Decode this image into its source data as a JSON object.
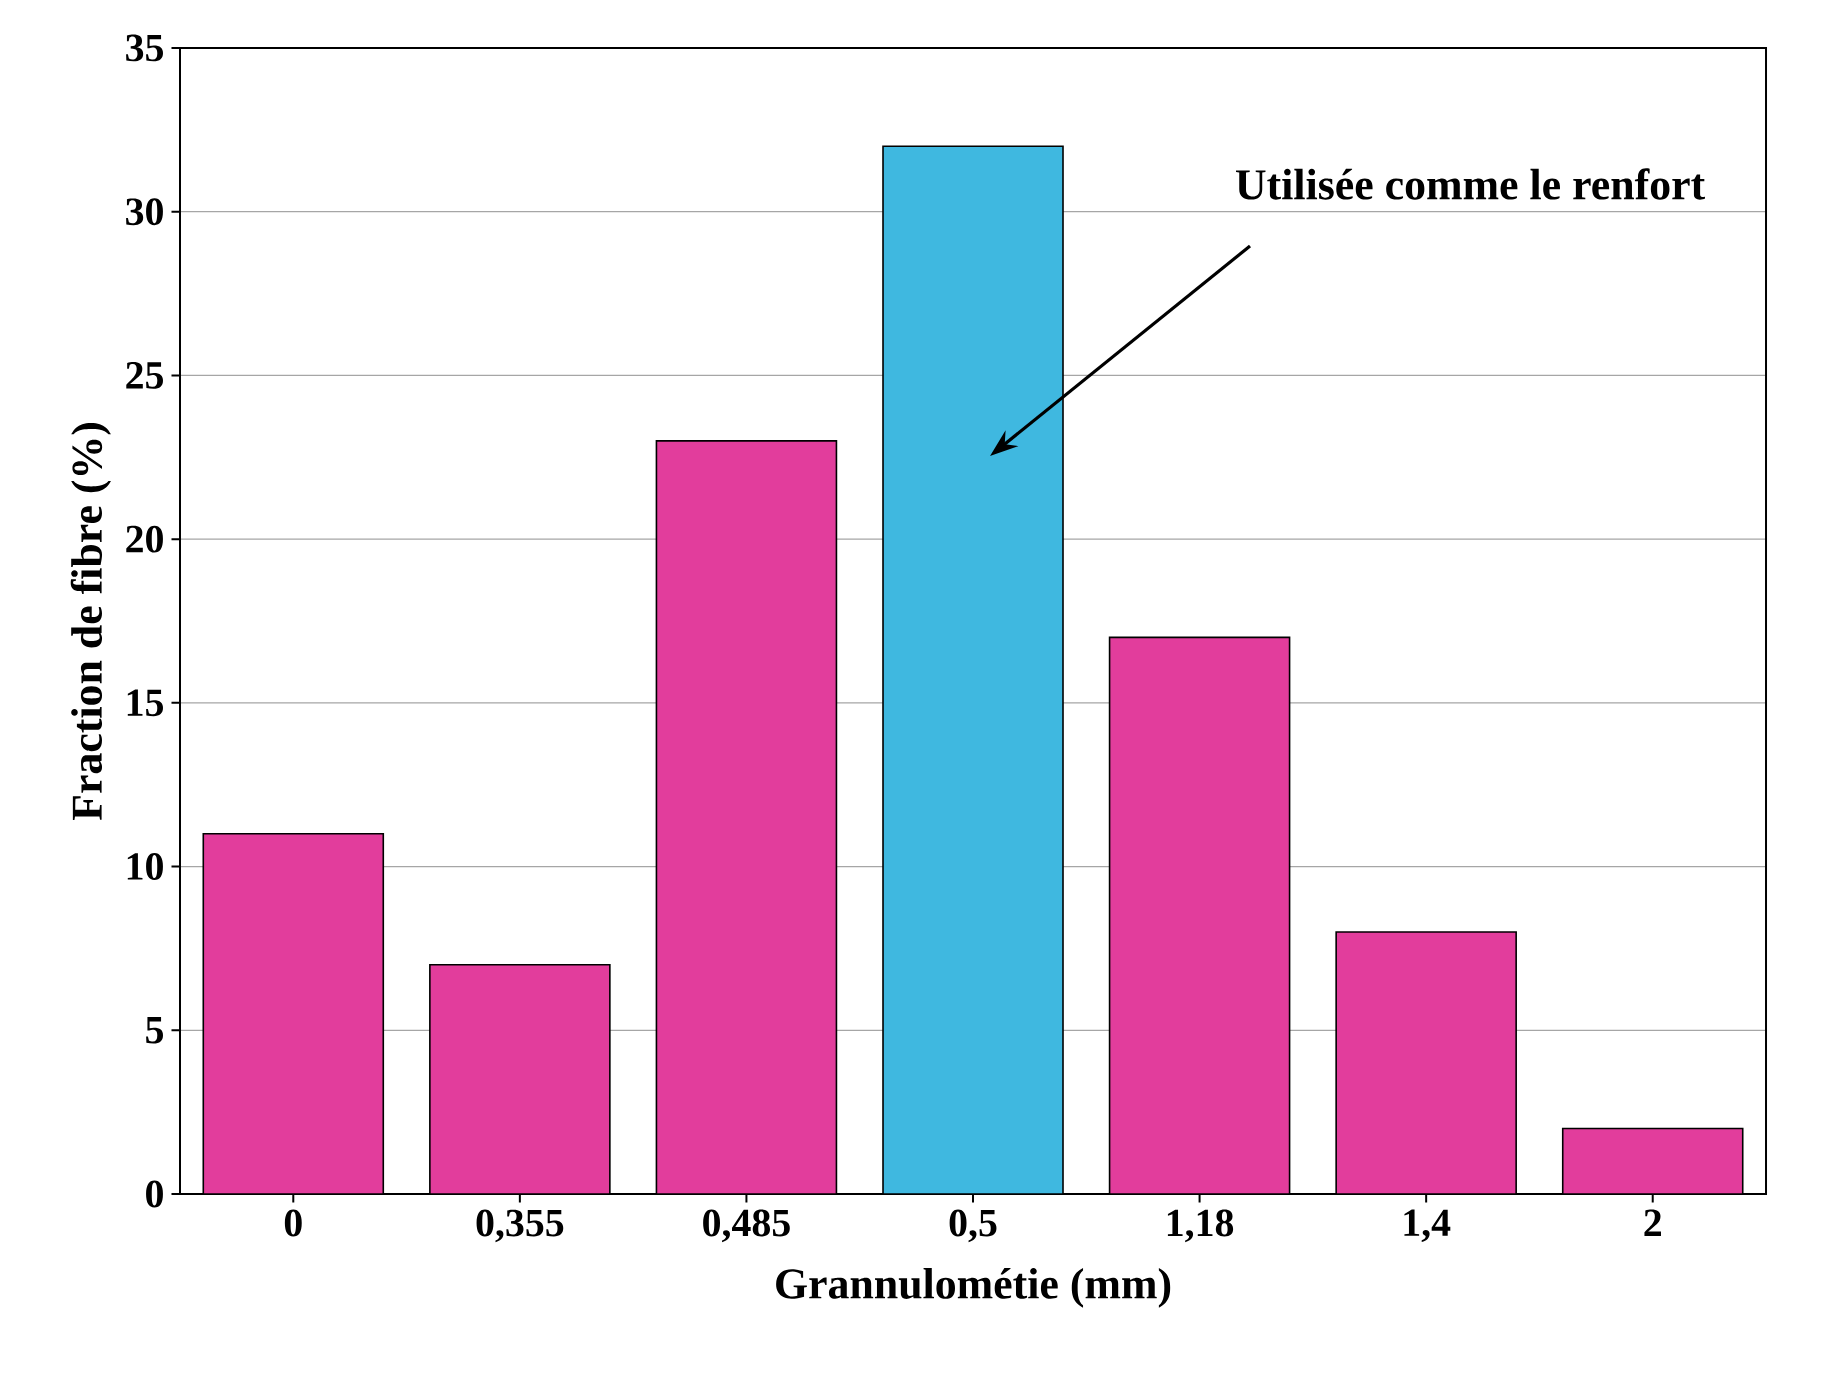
{
  "chart_data": {
    "type": "bar",
    "xlabel": "Grannulométie (mm)",
    "ylabel": "Fraction de fibre (%)",
    "categories": [
      "0",
      "0,355",
      "0,485",
      "0,5",
      "1,18",
      "1,4",
      "2"
    ],
    "values": [
      11,
      7,
      23,
      32,
      17,
      8,
      2
    ],
    "colors": [
      "#e23d9c",
      "#e23d9c",
      "#e23d9c",
      "#3fb8e0",
      "#e23d9c",
      "#e23d9c",
      "#e23d9c"
    ],
    "ylim": [
      0,
      35
    ],
    "yticks": [
      0,
      5,
      10,
      15,
      20,
      25,
      30,
      35
    ],
    "grid": "y",
    "annotations": [
      "Utilisée comme le renfort"
    ]
  }
}
